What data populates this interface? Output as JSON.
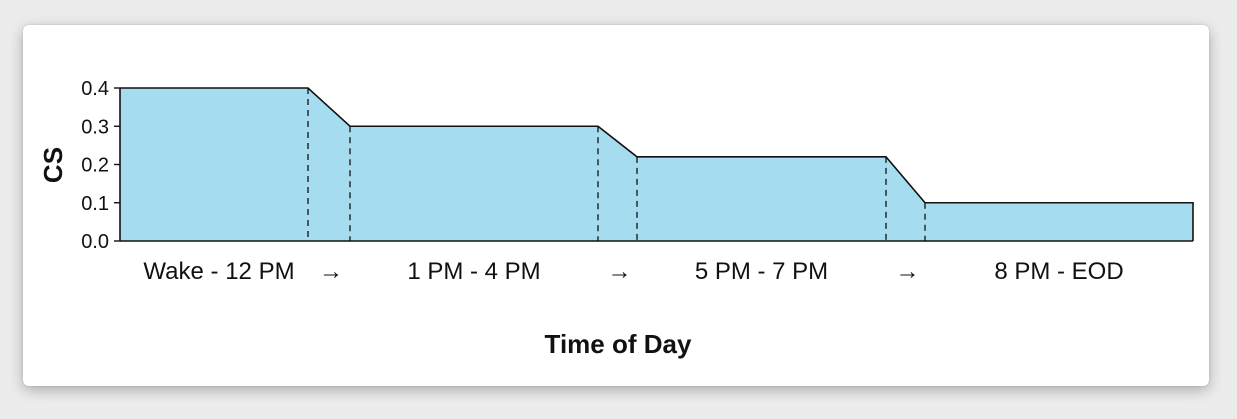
{
  "chart_data": {
    "type": "area",
    "title": "",
    "xlabel": "Time of Day",
    "ylabel": "CS",
    "ylim": [
      0,
      0.4
    ],
    "yticks": [
      "0.0",
      "0.1",
      "0.2",
      "0.3",
      "0.4"
    ],
    "categories": [
      "Wake - 12 PM",
      "1 PM - 4 PM",
      "5 PM - 7 PM",
      "8 PM - EOD"
    ],
    "transition_symbol": "→",
    "values": [
      0.4,
      0.3,
      0.22,
      0.1
    ],
    "fill_color": "#a6dcf0",
    "line_color": "#111111",
    "grid": false
  }
}
